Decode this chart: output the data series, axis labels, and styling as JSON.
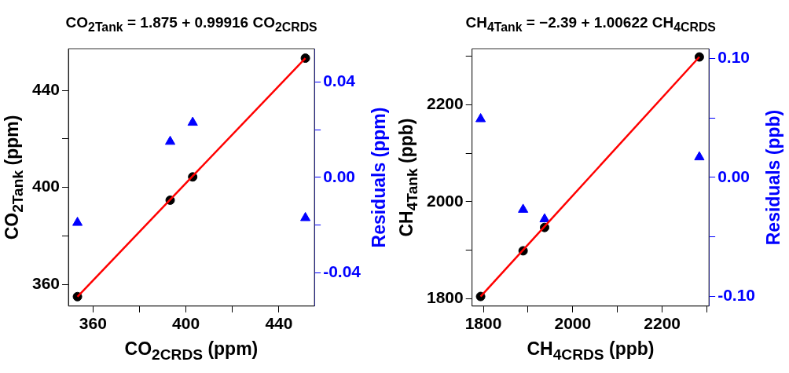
{
  "chart_data": [
    {
      "type": "scatter",
      "title": "CO$_{2Tank}$ = 1.875 + 0.99916 CO$_{2CRDS}$",
      "xlabel": "CO$_{2CRDS}$ (ppm)",
      "ylabel": "CO$_{2Tank}$ (ppm)",
      "y2label": "Residuals (ppm)",
      "xlim": [
        349.4,
        455.3
      ],
      "xticks": [
        360,
        {
          "value": 380,
          "label": null
        },
        400,
        {
          "value": 420,
          "label": null
        },
        440
      ],
      "ylim": [
        351,
        457.2
      ],
      "yticks": [
        360,
        {
          "value": 380,
          "label": null
        },
        400,
        {
          "value": 420,
          "label": null
        },
        440
      ],
      "y2lim": [
        -0.054,
        0.054
      ],
      "y2ticks": [
        -0.04,
        {
          "value": -0.02,
          "label": null
        },
        {
          "value": 0,
          "label": "0.00"
        },
        {
          "value": 0.02,
          "label": null
        },
        0.04
      ],
      "grid": false,
      "legend": false,
      "series": [
        {
          "type": "line",
          "color": "#ff0000",
          "marker": "none",
          "x": [
            353.3,
            451.4
          ],
          "values": [
            354.9,
            453.3
          ]
        },
        {
          "type": "scatter",
          "color": "#000000",
          "marker": "circle",
          "x": [
            353.3,
            393.2,
            402.9,
            451.4
          ],
          "values": [
            354.9,
            394.7,
            404.3,
            453.3
          ]
        },
        {
          "type": "scatter",
          "axis": "y2",
          "color": "#0000ff",
          "marker": "triangle",
          "x": [
            353.3,
            393.2,
            402.9,
            451.4
          ],
          "values": [
            -0.019,
            0.015,
            0.023,
            -0.017
          ]
        }
      ]
    },
    {
      "type": "scatter",
      "title": "CH$_{4Tank}$ = −2.39 + 1.00622 CH$_{4CRDS}$",
      "xlabel": "CH$_{4CRDS}$ (ppb)",
      "ylabel": "CH$_{4Tank}$ (ppb)",
      "y2label": "Residuals (ppb)",
      "xlim": [
        1774.9,
        2304.5
      ],
      "xticks": [
        1800,
        {
          "value": 1900,
          "label": null
        },
        2000,
        {
          "value": 2100,
          "label": null
        },
        2200,
        {
          "value": 2300,
          "label": null
        }
      ],
      "ylim": [
        1785.2,
        2315
      ],
      "yticks": [
        1800,
        {
          "value": 1900,
          "label": null
        },
        2000,
        {
          "value": 2100,
          "label": null
        },
        2200,
        {
          "value": 2300,
          "label": null
        }
      ],
      "y2lim": [
        -0.108,
        0.108
      ],
      "y2ticks": [
        {
          "value": -0.1,
          "label": "-0.10"
        },
        {
          "value": -0.05,
          "label": null
        },
        {
          "value": 0,
          "label": "0.00"
        },
        {
          "value": 0.05,
          "label": null
        },
        {
          "value": 0.1,
          "label": "0.10"
        }
      ],
      "grid": false,
      "legend": false,
      "series": [
        {
          "type": "line",
          "color": "#ff0000",
          "marker": "none",
          "x": [
            1794,
            2283
          ],
          "values": [
            1805,
            2298
          ]
        },
        {
          "type": "scatter",
          "color": "#000000",
          "marker": "circle",
          "x": [
            1794,
            1889,
            1937,
            2283
          ],
          "values": [
            1805,
            1899,
            1947,
            2298
          ]
        },
        {
          "type": "scatter",
          "axis": "y2",
          "color": "#0000ff",
          "marker": "triangle",
          "x": [
            1794,
            1889,
            1937,
            2283
          ],
          "values": [
            0.049,
            -0.027,
            -0.035,
            0.017
          ]
        }
      ]
    }
  ]
}
